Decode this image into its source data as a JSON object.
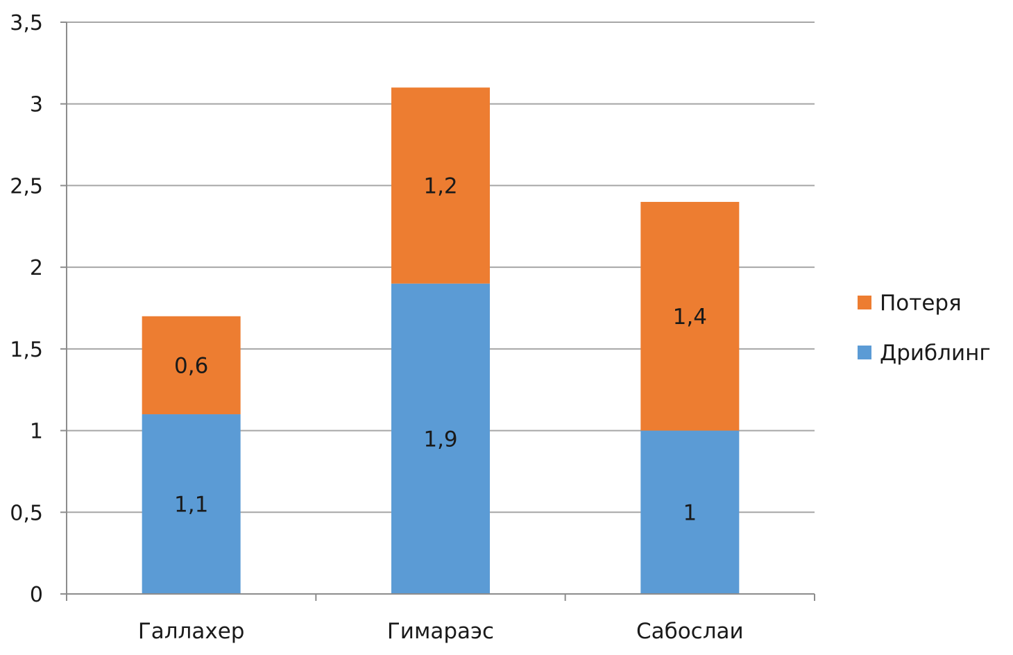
{
  "chart_data": {
    "type": "bar",
    "stacked": true,
    "categories": [
      "Галлахер",
      "Гимараэс",
      "Сабослаи"
    ],
    "series": [
      {
        "name": "Дриблинг",
        "values": [
          1.1,
          1.9,
          1
        ],
        "labels": [
          "1,1",
          "1,9",
          "1"
        ],
        "color": "#5b9bd5"
      },
      {
        "name": "Потеря",
        "values": [
          0.6,
          1.2,
          1.4
        ],
        "labels": [
          "0,6",
          "1,2",
          "1,4"
        ],
        "color": "#ed7d31"
      }
    ],
    "yticks": [
      {
        "value": 0,
        "label": "0"
      },
      {
        "value": 0.5,
        "label": "0,5"
      },
      {
        "value": 1,
        "label": "1"
      },
      {
        "value": 1.5,
        "label": "1,5"
      },
      {
        "value": 2,
        "label": "2"
      },
      {
        "value": 2.5,
        "label": "2,5"
      },
      {
        "value": 3,
        "label": "3"
      },
      {
        "value": 3.5,
        "label": "3,5"
      }
    ],
    "ylim": [
      0,
      3.5
    ],
    "grid": true,
    "legend": {
      "position": "right",
      "entries": [
        {
          "name": "Потеря",
          "color": "#ed7d31"
        },
        {
          "name": "Дриблинг",
          "color": "#5b9bd5"
        }
      ]
    },
    "title": "",
    "xlabel": "",
    "ylabel": ""
  }
}
